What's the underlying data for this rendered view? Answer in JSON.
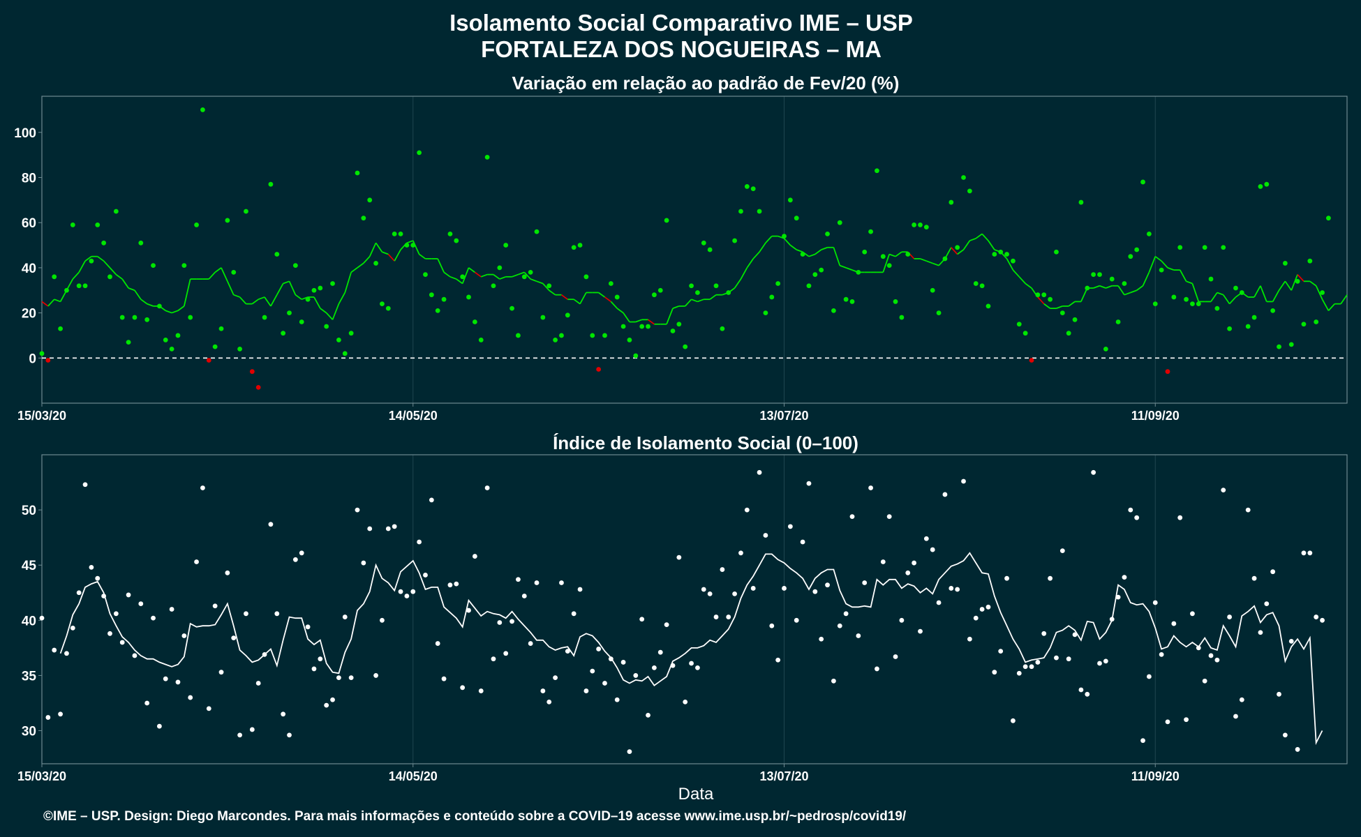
{
  "figure": {
    "title_line1": "Isolamento Social Comparativo IME – USP",
    "title_line2": "FORTALEZA DOS NOGUEIRAS – MA",
    "xlabel": "Data",
    "footer": "©IME – USP. Design: Diego Marcondes. Para mais informações e conteúdo sobre a COVID–19 acesse www.ime.usp.br/~pedrosp/covid19/"
  },
  "colors": {
    "background": "#002731",
    "panel_border": "#6f8a91",
    "grid": "#1f4650",
    "text": "#ffffff",
    "positive": "#00e600",
    "negative": "#e00000",
    "index": "#ffffff"
  },
  "chart_data": [
    {
      "type": "scatter",
      "title": "Variação em relação ao padrão de Fev/20 (%)",
      "x_start": "15/03/20",
      "x_ticks": [
        {
          "day": 0,
          "label": "15/03/20"
        },
        {
          "day": 60,
          "label": "14/05/20"
        },
        {
          "day": 120,
          "label": "13/07/20"
        },
        {
          "day": 180,
          "label": "11/09/20"
        }
      ],
      "xlim": [
        0,
        211
      ],
      "ylim": [
        -20,
        116
      ],
      "y_ticks": [
        0,
        20,
        40,
        60,
        80,
        100
      ],
      "reference_line": 0,
      "points": [
        2,
        -1,
        36,
        13,
        30,
        59,
        32,
        32,
        43,
        59,
        51,
        36,
        65,
        18,
        7,
        18,
        51,
        17,
        41,
        23,
        8,
        4,
        10,
        41,
        18,
        59,
        110,
        -1,
        5,
        13,
        61,
        38,
        4,
        65,
        -6,
        -13,
        18,
        77,
        46,
        11,
        20,
        41,
        16,
        26,
        30,
        31,
        14,
        33,
        8,
        2,
        11,
        82,
        62,
        70,
        42,
        24,
        22,
        55,
        55,
        50,
        50,
        91,
        37,
        28,
        21,
        26,
        55,
        52,
        36,
        27,
        16,
        8,
        89,
        32,
        40,
        50,
        22,
        10,
        36,
        38,
        56,
        18,
        32,
        8,
        10,
        19,
        49,
        50,
        36,
        10,
        -5,
        10,
        33,
        27,
        14,
        8,
        1,
        14,
        14,
        28,
        30,
        61,
        12,
        15,
        5,
        32,
        29,
        51,
        48,
        32,
        13,
        29,
        52,
        65,
        76,
        75,
        65,
        20,
        27,
        33,
        54,
        70,
        62,
        46,
        32,
        37,
        39,
        55,
        21,
        60,
        26,
        25,
        38,
        47,
        56,
        83,
        45,
        41,
        25,
        18,
        46,
        59,
        59,
        58,
        30,
        20,
        44,
        69,
        49,
        80,
        74,
        33,
        32,
        23,
        46,
        47,
        46,
        43,
        15,
        11,
        -1,
        28,
        28,
        26,
        47,
        20,
        11,
        17,
        69,
        31,
        37,
        37,
        4,
        35,
        16,
        33,
        45,
        48,
        78,
        55,
        24,
        39,
        -6,
        27,
        49,
        26,
        24,
        24,
        49,
        35,
        22,
        49,
        13,
        31,
        29,
        14,
        18,
        76,
        77,
        21,
        5,
        42,
        6,
        34,
        15,
        43,
        16,
        29,
        62
      ],
      "moving_average": [
        25,
        23,
        26,
        25,
        30,
        35,
        38,
        43,
        45,
        45,
        43,
        40,
        37,
        35,
        31,
        30,
        26,
        24,
        23,
        23,
        21,
        20,
        21,
        23,
        35,
        35,
        35,
        35,
        38,
        40,
        34,
        28,
        27,
        24,
        24,
        26,
        27,
        23,
        28,
        33,
        34,
        28,
        26,
        27,
        27,
        22,
        20,
        17,
        24,
        29,
        38,
        40,
        42,
        45,
        51,
        47,
        46,
        43,
        48,
        51,
        52,
        46,
        44,
        44,
        44,
        38,
        36,
        35,
        33,
        40,
        38,
        36,
        37,
        37,
        35,
        36,
        36,
        37,
        38,
        35,
        34,
        33,
        30,
        28,
        28,
        26,
        26,
        24,
        29,
        29,
        29,
        27,
        25,
        22,
        20,
        16,
        16,
        17,
        17,
        15,
        15,
        15,
        22,
        23,
        23,
        26,
        25,
        26,
        26,
        28,
        28,
        29,
        31,
        35,
        40,
        44,
        47,
        51,
        54,
        54,
        53,
        50,
        48,
        47,
        45,
        46,
        48,
        49,
        49,
        41,
        40,
        39,
        38,
        38,
        38,
        38,
        38,
        46,
        45,
        47,
        47,
        44,
        44,
        43,
        42,
        41,
        44,
        49,
        46,
        48,
        52,
        53,
        55,
        52,
        48,
        47,
        44,
        39,
        36,
        33,
        31,
        27,
        24,
        22,
        22,
        23,
        23,
        25,
        25,
        31,
        31,
        32,
        31,
        32,
        32,
        28,
        29,
        30,
        32,
        38,
        45,
        43,
        40,
        39,
        39,
        34,
        33,
        25,
        25,
        25,
        29,
        28,
        24,
        27,
        29,
        27,
        27,
        32,
        25,
        25,
        30,
        34,
        30,
        37,
        34,
        34,
        32,
        26,
        21,
        24,
        24,
        28
      ],
      "point_colors_rule": "points >= 0 positive color, points < 0 negative color; moving average segments colored by sign of change"
    },
    {
      "type": "scatter",
      "title": "Índice de Isolamento Social (0–100)",
      "x_start": "15/03/20",
      "x_ticks": [
        {
          "day": 0,
          "label": "15/03/20"
        },
        {
          "day": 60,
          "label": "14/05/20"
        },
        {
          "day": 120,
          "label": "13/07/20"
        },
        {
          "day": 180,
          "label": "11/09/20"
        }
      ],
      "xlim": [
        0,
        211
      ],
      "ylim": [
        27,
        55
      ],
      "y_ticks": [
        30,
        35,
        40,
        45,
        50
      ],
      "points": [
        40.2,
        31.2,
        37.3,
        31.5,
        37,
        39.3,
        42.5,
        52.3,
        44.8,
        43.8,
        42.2,
        38.8,
        40.6,
        38,
        42.3,
        36.8,
        41.5,
        32.5,
        40.2,
        30.4,
        34.7,
        41,
        34.4,
        38.6,
        33,
        45.3,
        52,
        32,
        41.3,
        35.3,
        44.3,
        38.4,
        29.6,
        40.6,
        30.1,
        34.3,
        36.9,
        48.7,
        40.6,
        31.5,
        29.6,
        45.5,
        46.1,
        39.4,
        35.6,
        36.5,
        32.3,
        32.8,
        34.8,
        40.3,
        34.8,
        50,
        45.2,
        48.3,
        35,
        40,
        48.3,
        48.5,
        42.6,
        42.2,
        42.6,
        47.1,
        44.1,
        50.9,
        37.9,
        34.7,
        43.2,
        43.3,
        33.9,
        40.9,
        45.8,
        33.6,
        52,
        36.5,
        39.8,
        37,
        39.9,
        43.7,
        42.2,
        37.9,
        43.4,
        33.6,
        32.6,
        34.8,
        43.4,
        37.2,
        40.6,
        42.8,
        33.6,
        35.4,
        37.4,
        34.3,
        36.5,
        32.8,
        36.2,
        28.1,
        35,
        40.1,
        31.4,
        35.7,
        37.1,
        39.6,
        35.9,
        45.7,
        32.6,
        36.1,
        35.7,
        42.8,
        42.4,
        40.3,
        44.6,
        40.3,
        42.4,
        46.1,
        50,
        42.9,
        53.4,
        47.7,
        39.5,
        36.4,
        42.9,
        48.5,
        40,
        47.1,
        52.4,
        42.6,
        38.3,
        43.2,
        34.5,
        39.5,
        40.6,
        49.4,
        38.6,
        43.4,
        52,
        35.6,
        45.3,
        49.4,
        36.7,
        40,
        44.3,
        45.2,
        39,
        47.4,
        46.4,
        41.6,
        51.4,
        42.9,
        42.8,
        52.6,
        38.3,
        40.2,
        41,
        41.2,
        35.3,
        37.2,
        43.8,
        30.9,
        35.2,
        35.8,
        35.8,
        36.2,
        38.8,
        43.8,
        36.6,
        46.3,
        36.5,
        38.7,
        33.7,
        33.3,
        53.4,
        36.1,
        36.3,
        40.1,
        42.1,
        43.9,
        50,
        49.3,
        29.1,
        34.9,
        41.6,
        36.9,
        30.8,
        39.7,
        49.3,
        31,
        40.6,
        37.5,
        34.5,
        36.8,
        36.4,
        51.8,
        40.3,
        31.3,
        32.8,
        50,
        43.8,
        38.9,
        41.5,
        44.4,
        33.3,
        29.6,
        38.1,
        28.3,
        46.1,
        46.1,
        40.3,
        40
      ],
      "moving_average": [
        null,
        null,
        null,
        37,
        38.6,
        40.5,
        41.5,
        43,
        43.3,
        43.5,
        42.5,
        40.6,
        39.5,
        38.5,
        38,
        37.3,
        36.8,
        36.5,
        36.5,
        36.2,
        36,
        35.8,
        36,
        36.7,
        39.7,
        39.4,
        39.5,
        39.5,
        39.6,
        40.5,
        41.5,
        39.5,
        37.3,
        36.8,
        36.2,
        36.4,
        36.9,
        37.4,
        35.9,
        38.2,
        40.3,
        40.2,
        40.2,
        38.3,
        37.8,
        38.2,
        36.1,
        35.3,
        35.2,
        37.1,
        38.3,
        40.9,
        41.5,
        42.6,
        45,
        43.8,
        43.4,
        42.7,
        44.4,
        44.9,
        45.4,
        44.3,
        42.8,
        43,
        43,
        41.2,
        40.7,
        40.2,
        39.4,
        41.8,
        41.1,
        40.4,
        40.8,
        40.6,
        40.5,
        40.2,
        40.8,
        40.1,
        39.5,
        38.9,
        38.2,
        38.2,
        37.6,
        37.3,
        37.5,
        37.6,
        36.8,
        38.5,
        38.8,
        38.6,
        38,
        37.2,
        36.6,
        35.7,
        34.6,
        34.3,
        34.6,
        34.5,
        34.9,
        34.1,
        34.5,
        34.9,
        36.3,
        36.6,
        37,
        37.5,
        37.5,
        37.7,
        38.2,
        38,
        38.6,
        39.2,
        40.3,
        42,
        43.2,
        44,
        45,
        46,
        46,
        45.5,
        45.2,
        44.7,
        44.3,
        43.8,
        42.8,
        43.8,
        44.3,
        44.6,
        44.6,
        42.7,
        41.5,
        41.2,
        41.2,
        41.3,
        41.2,
        43.7,
        43.2,
        43.7,
        43.7,
        42.9,
        43.3,
        43.1,
        42.5,
        42.9,
        42.4,
        43.7,
        44.3,
        44.9,
        45.1,
        45.4,
        46.1,
        45.2,
        44.3,
        44.2,
        42.2,
        40.7,
        39.5,
        38.3,
        37.4,
        36.2,
        36.4,
        36.5,
        36.6,
        37.5,
        38.9,
        39.1,
        39.5,
        39.1,
        38.2,
        39.9,
        39.8,
        38.3,
        38.9,
        40,
        43.2,
        42.8,
        41.6,
        41.4,
        41.5,
        40.8,
        39.3,
        37.4,
        37.6,
        38.6,
        38,
        37.6,
        38,
        37.6,
        38.4,
        37.5,
        37.3,
        39.5,
        38.6,
        37.6,
        40.4,
        40.8,
        41.3,
        39.8,
        40.5,
        40.7,
        39.5,
        36.3,
        37.6,
        38.3,
        37.4,
        38.4,
        28.9,
        30
      ]
    }
  ]
}
